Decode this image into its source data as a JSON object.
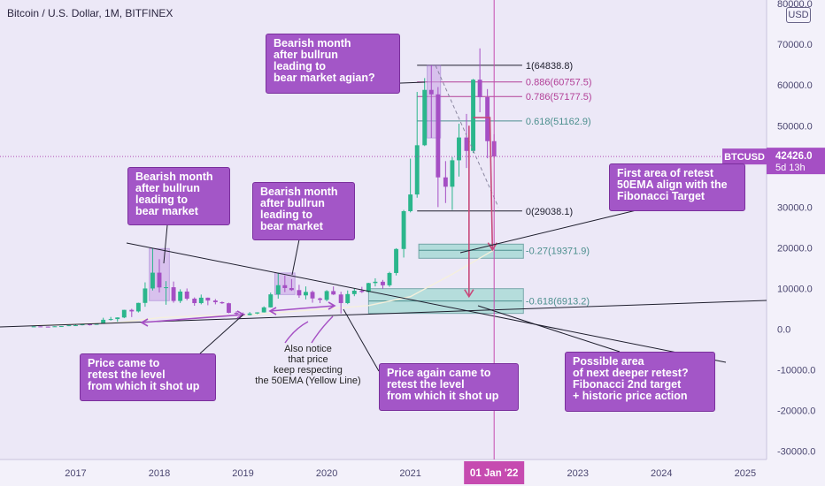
{
  "header": {
    "title": "Bitcoin / U.S. Dollar, 1M, BITFINEX",
    "currency_button": "USD"
  },
  "price_tag": {
    "symbol": "BTCUSD",
    "price": "42426.0",
    "countdown": "5d 13h"
  },
  "date_tag": "01 Jan '22",
  "chart_data": {
    "type": "candlestick",
    "interval": "1M",
    "ylim": [
      -30000,
      80000
    ],
    "y_ticks": [
      80000,
      70000,
      60000,
      50000,
      40000,
      30000,
      20000,
      10000,
      0,
      -10000,
      -20000,
      -30000
    ],
    "y_tick_labels": [
      "80000.0",
      "70000.0",
      "60000.0",
      "50000.0",
      "40000.0",
      "30000.0",
      "20000.0",
      "10000.0",
      "0.0",
      "-10000.0",
      "-20000.0",
      "-30000.0"
    ],
    "x_ticks": [
      "2017",
      "2018",
      "2019",
      "2020",
      "2021",
      "2022",
      "2023",
      "2024",
      "2025"
    ],
    "candles": [
      [
        2016.5,
        650,
        700,
        600,
        680
      ],
      [
        2016.58,
        680,
        700,
        550,
        620
      ],
      [
        2016.67,
        620,
        640,
        560,
        610
      ],
      [
        2016.75,
        610,
        730,
        600,
        700
      ],
      [
        2016.83,
        700,
        760,
        680,
        750
      ],
      [
        2016.92,
        750,
        980,
        740,
        960
      ],
      [
        2017.0,
        960,
        1150,
        760,
        970
      ],
      [
        2017.08,
        970,
        1200,
        920,
        1190
      ],
      [
        2017.17,
        1190,
        1350,
        890,
        1080
      ],
      [
        2017.25,
        1080,
        1350,
        1070,
        1340
      ],
      [
        2017.33,
        1340,
        2800,
        1330,
        2300
      ],
      [
        2017.42,
        2300,
        3000,
        2100,
        2480
      ],
      [
        2017.5,
        2480,
        2900,
        1830,
        2870
      ],
      [
        2017.58,
        2870,
        4750,
        2700,
        4740
      ],
      [
        2017.67,
        4740,
        5000,
        2970,
        4360
      ],
      [
        2017.75,
        4360,
        6500,
        4100,
        6450
      ],
      [
        2017.83,
        6450,
        11500,
        5500,
        10000
      ],
      [
        2017.92,
        10000,
        19800,
        9500,
        13880
      ],
      [
        2018.0,
        13880,
        17200,
        9000,
        10250
      ],
      [
        2018.08,
        10250,
        11800,
        6000,
        10300
      ],
      [
        2018.17,
        10300,
        11700,
        6500,
        6930
      ],
      [
        2018.25,
        6930,
        9800,
        6430,
        9240
      ],
      [
        2018.33,
        9240,
        10000,
        7100,
        7500
      ],
      [
        2018.42,
        7500,
        7800,
        5750,
        6400
      ],
      [
        2018.5,
        6400,
        8500,
        6100,
        7730
      ],
      [
        2018.58,
        7730,
        7760,
        5880,
        7030
      ],
      [
        2018.67,
        7030,
        7400,
        6100,
        6630
      ],
      [
        2018.75,
        6630,
        6800,
        6200,
        6370
      ],
      [
        2018.83,
        6370,
        6500,
        3900,
        4020
      ],
      [
        2018.92,
        4020,
        4400,
        3200,
        3740
      ],
      [
        2019.0,
        3740,
        4100,
        3400,
        3460
      ],
      [
        2019.08,
        3460,
        4200,
        3380,
        3850
      ],
      [
        2019.17,
        3850,
        4150,
        3700,
        4120
      ],
      [
        2019.25,
        4120,
        5600,
        4080,
        5350
      ],
      [
        2019.33,
        5350,
        9000,
        5300,
        8550
      ],
      [
        2019.42,
        8550,
        13800,
        7500,
        10800
      ],
      [
        2019.5,
        10800,
        13200,
        9100,
        10100
      ],
      [
        2019.58,
        10100,
        12300,
        9400,
        9600
      ],
      [
        2019.67,
        9600,
        10900,
        7700,
        8300
      ],
      [
        2019.75,
        8300,
        10500,
        7300,
        9150
      ],
      [
        2019.83,
        9150,
        9500,
        6500,
        7550
      ],
      [
        2019.92,
        7550,
        7750,
        6400,
        7200
      ],
      [
        2020.0,
        7200,
        9600,
        6850,
        9350
      ],
      [
        2020.08,
        9350,
        10500,
        8400,
        8520
      ],
      [
        2020.17,
        8520,
        9200,
        3850,
        6410
      ],
      [
        2020.25,
        6410,
        9500,
        6150,
        8620
      ],
      [
        2020.33,
        8620,
        10000,
        8100,
        9450
      ],
      [
        2020.42,
        9450,
        10400,
        8900,
        9140
      ],
      [
        2020.5,
        9140,
        11400,
        8950,
        11330
      ],
      [
        2020.58,
        11330,
        12500,
        10500,
        11650
      ],
      [
        2020.67,
        11650,
        12100,
        9900,
        10780
      ],
      [
        2020.75,
        10780,
        14100,
        10400,
        13800
      ],
      [
        2020.83,
        13800,
        19900,
        13200,
        19700
      ],
      [
        2020.92,
        19700,
        29300,
        17600,
        28990
      ],
      [
        2021.0,
        28990,
        41900,
        28700,
        33100
      ],
      [
        2021.08,
        33100,
        58300,
        32300,
        45200
      ],
      [
        2021.17,
        45200,
        61700,
        45000,
        58800
      ],
      [
        2021.25,
        58800,
        64800,
        47000,
        57700
      ],
      [
        2021.33,
        57700,
        59500,
        30000,
        37300
      ],
      [
        2021.42,
        37300,
        41300,
        31000,
        35000
      ],
      [
        2021.5,
        35000,
        42300,
        29300,
        41500
      ],
      [
        2021.58,
        41500,
        50500,
        37500,
        47100
      ],
      [
        2021.67,
        47100,
        52900,
        39600,
        43800
      ],
      [
        2021.75,
        43800,
        61500,
        43300,
        61300
      ],
      [
        2021.83,
        61300,
        69000,
        53300,
        57000
      ],
      [
        2021.92,
        57000,
        59000,
        42000,
        46200
      ],
      [
        2022.0,
        46200,
        47900,
        42000,
        42426
      ]
    ],
    "ema50_anchor_points": [
      [
        2016.5,
        900
      ],
      [
        2017.5,
        1600
      ],
      [
        2018.0,
        2800
      ],
      [
        2018.5,
        3300
      ],
      [
        2019.0,
        3400
      ],
      [
        2019.5,
        4200
      ],
      [
        2020.0,
        5000
      ],
      [
        2020.5,
        5800
      ],
      [
        2021.0,
        8000
      ],
      [
        2021.5,
        13500
      ],
      [
        2022.0,
        19500
      ]
    ],
    "fibonacci": [
      {
        "level": "1",
        "price": 64838.8,
        "label": "1(64838.8)"
      },
      {
        "level": "0.886",
        "price": 60757.5,
        "label": "0.886(60757.5)"
      },
      {
        "level": "0.786",
        "price": 57177.5,
        "label": "0.786(57177.5)"
      },
      {
        "level": "0.618",
        "price": 51162.9,
        "label": "0.618(51162.9)"
      },
      {
        "level": "0",
        "price": 29038.1,
        "label": "0(29038.1)"
      },
      {
        "level": "-0.27",
        "price": 19371.9,
        "label": "-0.27(19371.9)"
      },
      {
        "level": "-0.618",
        "price": 6913.2,
        "label": "-0.618(6913.2)"
      }
    ],
    "annotations": [
      "Bearish month\nafter bullrun\nleading to\nbear market agian?",
      "Bearish month\nafter bullrun\nleading to\nbear market",
      "Bearish month\nafter bullrun\nleading to\nbear market",
      "First area of retest\n50EMA align with the\nFibonacci Target",
      "Price came to\nretest the level\nfrom which it shot up",
      "Also notice\nthat price\nkeep respecting\nthe 50EMA (Yellow Line)",
      "Price again came to\nretest the level\nfrom which it shot up",
      "Possible area\nof next deeper retest?\nFibonacci 2nd target\n+ historic price action"
    ],
    "colors": {
      "up": "#2bb68c",
      "down": "#a54fc4",
      "ema": "#f5f0dc",
      "fib_main": "#4c8f8e",
      "fib_pink": "#b23f97",
      "callout": "#a356c7",
      "trend": "#1f1f2e",
      "current_price_line": "#b04bb4"
    }
  }
}
